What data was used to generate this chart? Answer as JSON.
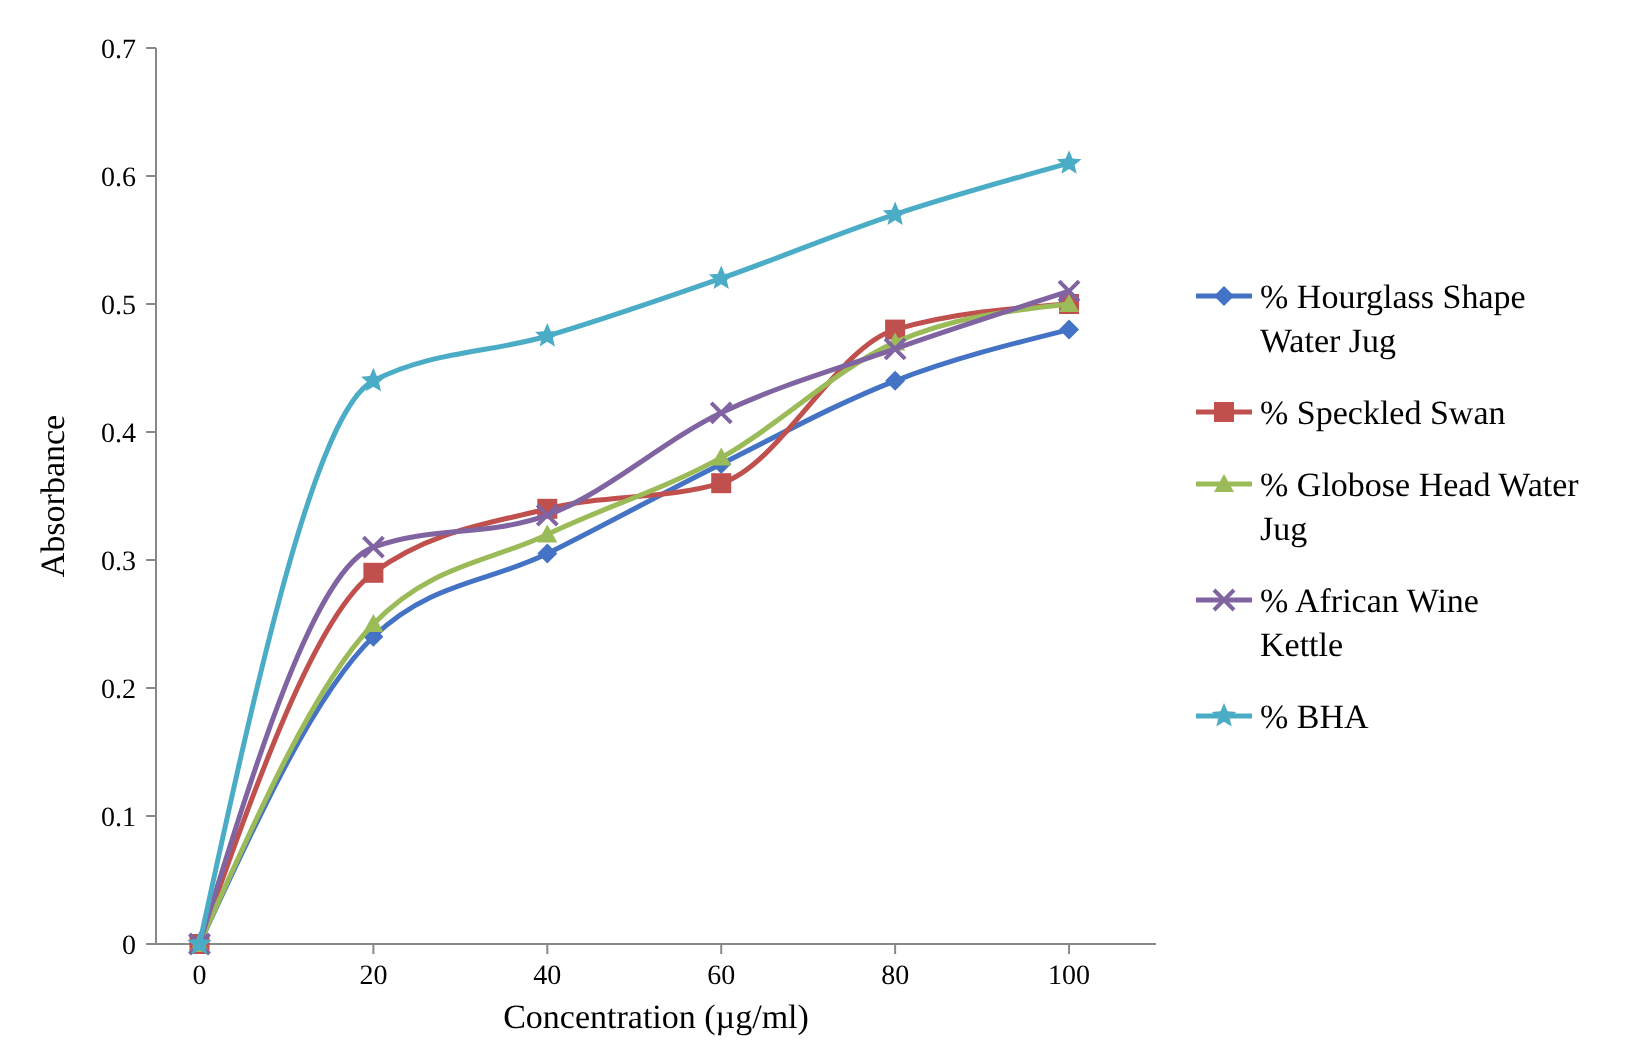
{
  "chart_data": {
    "type": "line",
    "xlabel": "Concentration (µg/ml)",
    "ylabel": "Absorbance",
    "x": [
      0,
      20,
      40,
      60,
      80,
      100
    ],
    "series": [
      {
        "name": "% Hourglass Shape Water Jug",
        "color": "#4472c4",
        "marker": "diamond",
        "values": [
          0,
          0.24,
          0.305,
          0.375,
          0.44,
          0.48
        ]
      },
      {
        "name": "% Speckled Swan",
        "color": "#c0504d",
        "marker": "square",
        "values": [
          0,
          0.29,
          0.34,
          0.36,
          0.48,
          0.5
        ]
      },
      {
        "name": "% Globose Head Water Jug",
        "color": "#9bbb59",
        "marker": "triangle",
        "values": [
          0,
          0.25,
          0.32,
          0.38,
          0.47,
          0.5
        ]
      },
      {
        "name": "% African Wine Kettle",
        "color": "#8064a2",
        "marker": "cross",
        "values": [
          0,
          0.31,
          0.335,
          0.415,
          0.465,
          0.51
        ]
      },
      {
        "name": "% BHA",
        "color": "#4bacc6",
        "marker": "star",
        "values": [
          0,
          0.44,
          0.475,
          0.52,
          0.57,
          0.61
        ]
      }
    ],
    "xlim": [
      -5,
      110
    ],
    "xticks": [
      0,
      20,
      40,
      60,
      80,
      100
    ],
    "ylim": [
      0,
      0.7
    ],
    "yticks": [
      0,
      0.1,
      0.2,
      0.3,
      0.4,
      0.5,
      0.6,
      0.7
    ],
    "grid": false,
    "legend": "right"
  }
}
